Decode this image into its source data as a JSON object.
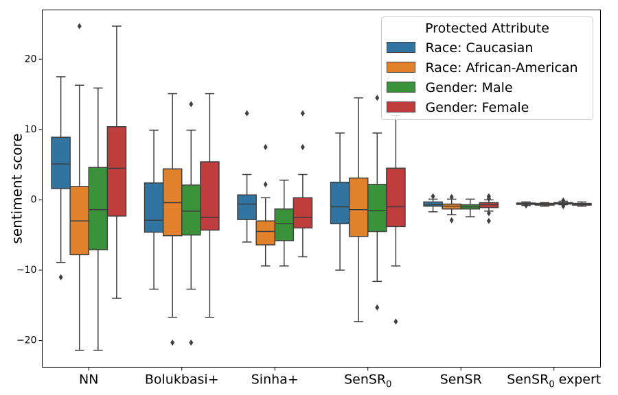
{
  "chart_data": {
    "type": "box",
    "ylabel": "sentiment score",
    "ylim": [
      -23.8,
      27.0
    ],
    "yticks": [
      {
        "value": -20,
        "label": "−20"
      },
      {
        "value": -10,
        "label": "−10"
      },
      {
        "value": 0,
        "label": "0"
      },
      {
        "value": 10,
        "label": "10"
      },
      {
        "value": 20,
        "label": "20"
      }
    ],
    "grid": false,
    "categories": [
      {
        "label": "NN",
        "sub": ""
      },
      {
        "label": "Bolukbasi+",
        "sub": ""
      },
      {
        "label": "Sinha+",
        "sub": ""
      },
      {
        "label": "SenSR",
        "sub": "0"
      },
      {
        "label": "SenSR",
        "sub": ""
      },
      {
        "label": "SenSR",
        "sub": "0",
        "suffix": " expert"
      }
    ],
    "legend": {
      "title": "Protected Attribute",
      "position": "top-right"
    },
    "series": [
      {
        "name": "Race: Caucasian",
        "color": "#3274a1",
        "boxes": [
          {
            "whislo": -8.9,
            "q1": 1.6,
            "med": 5.1,
            "q3": 8.9,
            "whishi": 17.5,
            "fliers": [
              -11.0
            ]
          },
          {
            "whislo": -12.7,
            "q1": -4.6,
            "med": -2.9,
            "q3": 2.4,
            "whishi": 9.9,
            "fliers": []
          },
          {
            "whislo": -6.0,
            "q1": -2.8,
            "med": -0.6,
            "q3": 0.7,
            "whishi": 3.6,
            "fliers": [
              12.3
            ]
          },
          {
            "whislo": -10.0,
            "q1": -3.4,
            "med": -1.0,
            "q3": 2.5,
            "whishi": 9.5,
            "fliers": []
          },
          {
            "whislo": -1.7,
            "q1": -0.9,
            "med": -0.7,
            "q3": -0.3,
            "whishi": 0.1,
            "fliers": [
              0.5
            ]
          },
          {
            "whislo": -0.8,
            "q1": -0.65,
            "med": -0.55,
            "q3": -0.45,
            "whishi": -0.3,
            "fliers": [
              -0.8
            ]
          }
        ]
      },
      {
        "name": "Race: African-American",
        "color": "#e1812c",
        "boxes": [
          {
            "whislo": -21.4,
            "q1": -7.8,
            "med": -3.0,
            "q3": 1.9,
            "whishi": 16.3,
            "fliers": [
              24.7
            ]
          },
          {
            "whislo": -16.7,
            "q1": -5.1,
            "med": -0.4,
            "q3": 4.4,
            "whishi": 15.1,
            "fliers": [
              -20.3
            ]
          },
          {
            "whislo": -9.4,
            "q1": -6.4,
            "med": -4.5,
            "q3": -3.0,
            "whishi": 0.3,
            "fliers": [
              2.2,
              7.5
            ]
          },
          {
            "whislo": -17.3,
            "q1": -5.2,
            "med": -1.4,
            "q3": 3.1,
            "whishi": 14.5,
            "fliers": []
          },
          {
            "whislo": -2.1,
            "q1": -1.3,
            "med": -0.9,
            "q3": -0.6,
            "whishi": 0.1,
            "fliers": [
              0.4,
              -2.9
            ]
          },
          {
            "whislo": -0.9,
            "q1": -0.75,
            "med": -0.65,
            "q3": -0.5,
            "whishi": -0.4,
            "fliers": []
          }
        ]
      },
      {
        "name": "Gender: Male",
        "color": "#3a923a",
        "boxes": [
          {
            "whislo": -21.4,
            "q1": -7.1,
            "med": -1.4,
            "q3": 4.6,
            "whishi": 15.9,
            "fliers": []
          },
          {
            "whislo": -12.7,
            "q1": -5.0,
            "med": -1.6,
            "q3": 2.1,
            "whishi": 9.9,
            "fliers": [
              13.6,
              -20.3
            ]
          },
          {
            "whislo": -9.4,
            "q1": -5.8,
            "med": -3.4,
            "q3": -1.3,
            "whishi": 2.8,
            "fliers": []
          },
          {
            "whislo": -11.6,
            "q1": -4.5,
            "med": -1.5,
            "q3": 2.2,
            "whishi": 9.5,
            "fliers": [
              14.5,
              -15.3
            ]
          },
          {
            "whislo": -2.4,
            "q1": -1.3,
            "med": -1.0,
            "q3": -0.7,
            "whishi": 0.1,
            "fliers": []
          },
          {
            "whislo": -0.7,
            "q1": -0.6,
            "med": -0.5,
            "q3": -0.4,
            "whishi": -0.2,
            "fliers": [
              -0.9,
              -0.1
            ]
          }
        ]
      },
      {
        "name": "Gender: Female",
        "color": "#c03d3e",
        "boxes": [
          {
            "whislo": -14.0,
            "q1": -2.3,
            "med": 4.5,
            "q3": 10.4,
            "whishi": 24.7,
            "fliers": []
          },
          {
            "whislo": -16.7,
            "q1": -4.3,
            "med": -2.5,
            "q3": 5.4,
            "whishi": 15.1,
            "fliers": []
          },
          {
            "whislo": -8.1,
            "q1": -4.0,
            "med": -2.5,
            "q3": 0.3,
            "whishi": 3.6,
            "fliers": [
              7.5,
              12.3
            ]
          },
          {
            "whislo": -9.4,
            "q1": -3.8,
            "med": -1.0,
            "q3": 4.5,
            "whishi": 12.0,
            "fliers": [
              -17.3
            ]
          },
          {
            "whislo": -1.6,
            "q1": -1.1,
            "med": -0.7,
            "q3": -0.4,
            "whishi": 0.0,
            "fliers": [
              0.5,
              0.2,
              -1.9,
              -3.0
            ]
          },
          {
            "whislo": -0.9,
            "q1": -0.75,
            "med": -0.65,
            "q3": -0.5,
            "whishi": -0.3,
            "fliers": []
          }
        ]
      }
    ]
  }
}
